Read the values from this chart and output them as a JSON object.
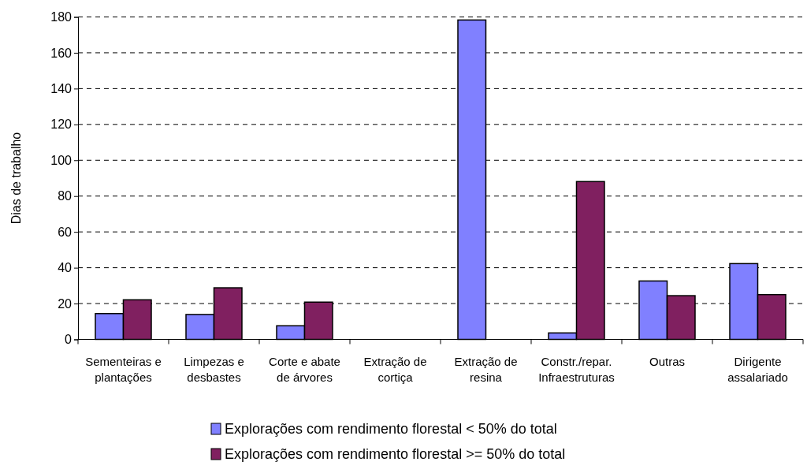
{
  "chart_data": {
    "type": "bar",
    "ylabel": "Dias de trabalho",
    "categories": [
      "Sementeiras e plantações",
      "Limpezas e desbastes",
      "Corte e abate de árvores",
      "Extração de cortiça",
      "Extração de resina",
      "Constr./repar. Infraestruturas",
      "Outras",
      "Dirigente assalariado"
    ],
    "series": [
      {
        "name": "Explorações com rendimento florestal < 50% do total",
        "color": "#8080ff",
        "values": [
          14.4,
          13.9,
          7.6,
          0,
          178.3,
          3.6,
          32.6,
          42.3
        ]
      },
      {
        "name": "Explorações com rendimento florestal >= 50% do total",
        "color": "#802060",
        "values": [
          22.1,
          28.8,
          20.8,
          0,
          0,
          88.1,
          24.4,
          25.0
        ]
      }
    ],
    "ylim": [
      0,
      180
    ],
    "yticks": [
      0,
      20,
      40,
      60,
      80,
      100,
      120,
      140,
      160,
      180
    ],
    "grid": "y",
    "legend": "bottom"
  }
}
